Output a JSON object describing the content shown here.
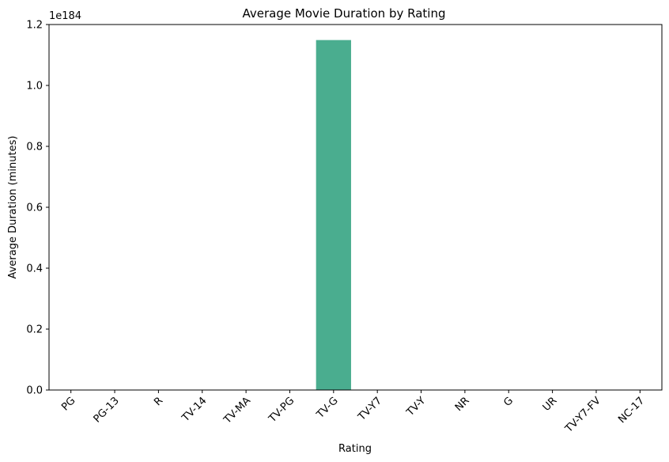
{
  "chart_data": {
    "type": "bar",
    "title": "Average Movie Duration by Rating",
    "xlabel": "Rating",
    "ylabel": "Average Duration (minutes)",
    "offset_text": "1e184",
    "categories": [
      "PG",
      "PG-13",
      "R",
      "TV-14",
      "TV-MA",
      "TV-PG",
      "TV-G",
      "TV-Y7",
      "TV-Y",
      "NR",
      "G",
      "UR",
      "TV-Y7-FV",
      "NC-17"
    ],
    "values": [
      0,
      0,
      0,
      0,
      0,
      0,
      1.149,
      0,
      0,
      0,
      0,
      0,
      0,
      0
    ],
    "value_scale": "1e184",
    "ylim": [
      0,
      1.2
    ],
    "yticks": [
      "0.0",
      "0.2",
      "0.4",
      "0.6",
      "0.8",
      "1.0",
      "1.2"
    ],
    "ytick_values": [
      0,
      0.2,
      0.4,
      0.6,
      0.8,
      1.0,
      1.2
    ],
    "grid": false,
    "bar_color": "#4aad8f"
  }
}
